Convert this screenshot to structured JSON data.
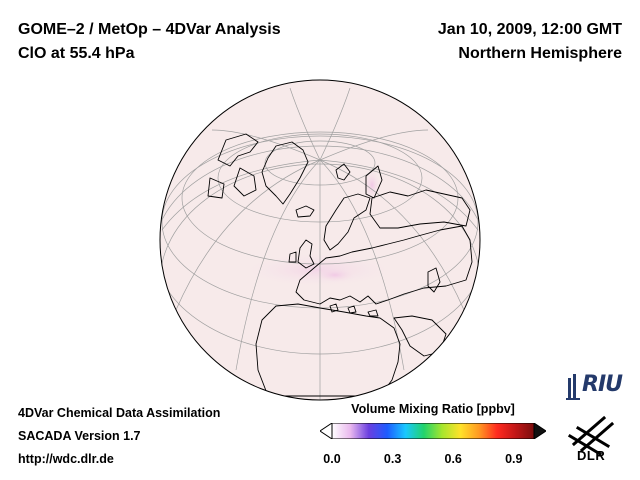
{
  "header": {
    "title_line1": "GOME–2 / MetOp – 4DVar Analysis",
    "title_line2": "ClO at 55.4 hPa",
    "datetime": "Jan 10, 2009, 12:00 GMT",
    "region": "Northern Hemisphere"
  },
  "map": {
    "projection": "orthographic",
    "center": "North Atlantic / Europe",
    "background_color": "#f7eaea",
    "highlight_color": "#f2c6e6",
    "coastline_color": "#000000",
    "graticule_color": "#9a9a9a"
  },
  "footer": {
    "line1": "4DVar Chemical Data Assimilation",
    "line2": "SACADA Version 1.7",
    "line3": "http://wdc.dlr.de"
  },
  "colorbar": {
    "title": "Volume Mixing Ratio [ppbv]",
    "min": 0.0,
    "max": 1.0,
    "ticks": [
      "0.0",
      "0.3",
      "0.6",
      "0.9"
    ],
    "tick_values": [
      0.0,
      0.3,
      0.6,
      0.9
    ],
    "colors": [
      "#ffffff",
      "#e9b8ee",
      "#6a3fe0",
      "#1e5cff",
      "#19c8ff",
      "#22d36b",
      "#a6e62d",
      "#ffe22a",
      "#ff9a22",
      "#ff2a1f",
      "#c21717",
      "#7a0d0d"
    ]
  },
  "logos": {
    "riu": "RIU",
    "dlr": "DLR"
  }
}
